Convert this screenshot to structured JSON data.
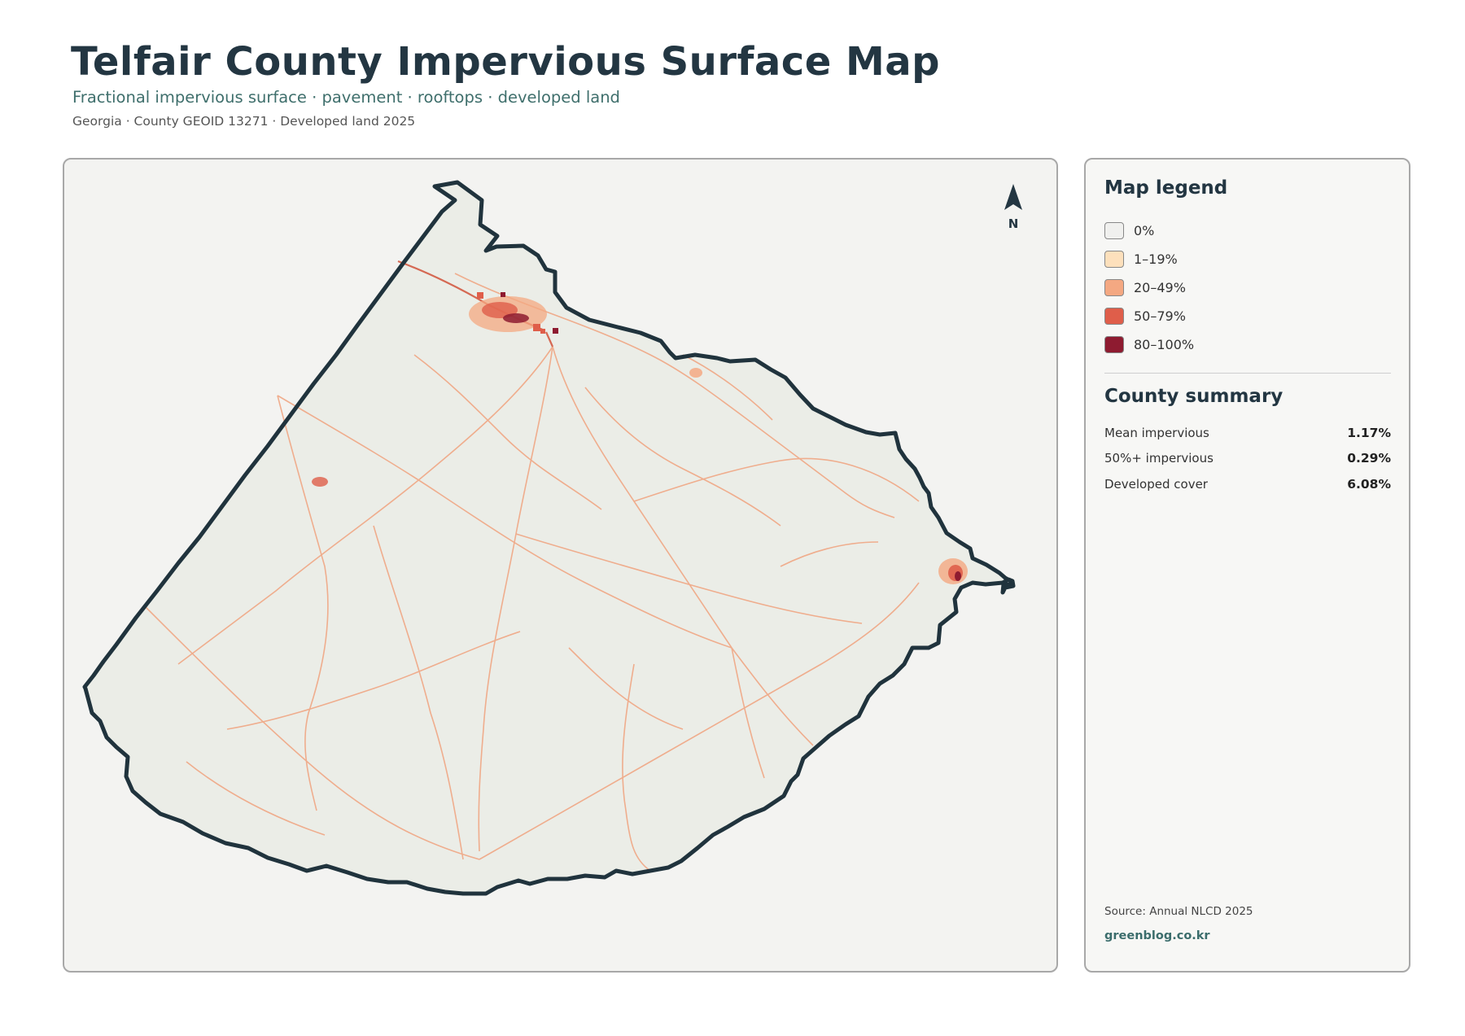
{
  "header": {
    "title": "Telfair County Impervious Surface Map",
    "subtitle": "Fractional impervious surface · pavement · rooftops · developed land",
    "meta": "Georgia · County GEOID 13271 · Developed land 2025"
  },
  "map": {
    "north_label": "N",
    "county_fill": "#ebede7",
    "boundary_color": "#20333d",
    "road_color": "#f0a27e",
    "urban_color": "#d35a43",
    "dense_color": "#8b1a2c"
  },
  "legend": {
    "title": "Map legend",
    "items": [
      {
        "label": "0%",
        "color": "#f0f0ee"
      },
      {
        "label": "1–19%",
        "color": "#fde0bc"
      },
      {
        "label": "20–49%",
        "color": "#f4a882"
      },
      {
        "label": "50–79%",
        "color": "#df5e4a"
      },
      {
        "label": "80–100%",
        "color": "#8e1b30"
      }
    ]
  },
  "summary": {
    "title": "County summary",
    "stats": [
      {
        "label": "Mean impervious",
        "value": "1.17%"
      },
      {
        "label": "50%+ impervious",
        "value": "0.29%"
      },
      {
        "label": "Developed cover",
        "value": "6.08%"
      }
    ]
  },
  "footer": {
    "source": "Source: Annual NLCD 2025",
    "credit": "greenblog.co.kr"
  }
}
